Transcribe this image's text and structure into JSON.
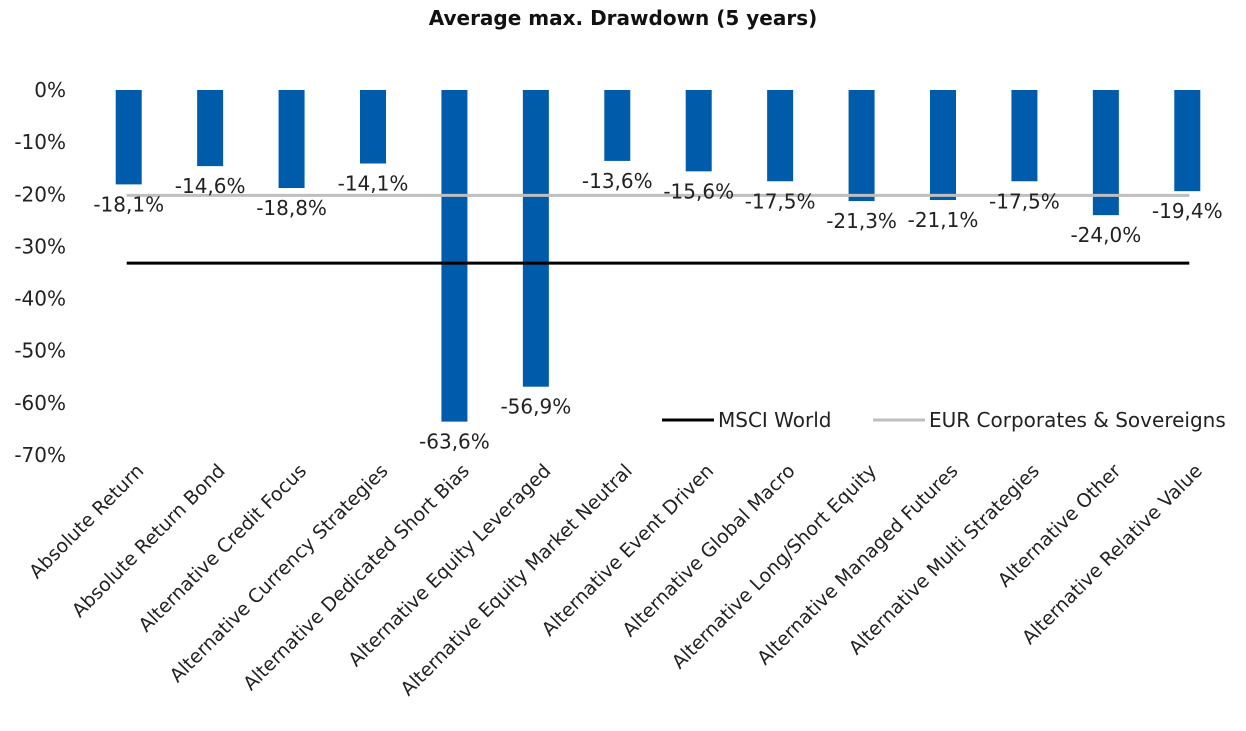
{
  "chart_data": {
    "type": "bar",
    "title": "Average max. Drawdown  (5 years)",
    "xlabel": "",
    "ylabel": "",
    "ylim": [
      -70,
      0
    ],
    "y_ticks": [
      0,
      -10,
      -20,
      -30,
      -40,
      -50,
      -60,
      -70
    ],
    "y_tick_labels": [
      "0%",
      "-10%",
      "-20%",
      "-30%",
      "-40%",
      "-50%",
      "-60%",
      "-70%"
    ],
    "categories": [
      "Absolute Return",
      "Absolute Return Bond",
      "Alternative Credit Focus",
      "Alternative Currency Strategies",
      "Alternative Dedicated Short Bias",
      "Alternative Equity Leveraged",
      "Alternative Equity Market Neutral",
      "Alternative Event Driven",
      "Alternative Global Macro",
      "Alternative Long/Short Equity",
      "Alternative Managed Futures",
      "Alternative Multi Strategies",
      "Alternative Other",
      "Alternative Relative Value"
    ],
    "values": [
      -18.1,
      -14.6,
      -18.8,
      -14.1,
      -63.6,
      -56.9,
      -13.6,
      -15.6,
      -17.5,
      -21.3,
      -21.1,
      -17.5,
      -24.0,
      -19.4
    ],
    "data_labels": [
      "-18,1%",
      "-14,6%",
      "-18,8%",
      "-14,1%",
      "-63,6%",
      "-56,9%",
      "-13,6%",
      "-15,6%",
      "-17,5%",
      "-21,3%",
      "-21,1%",
      "-17,5%",
      "-24,0%",
      "-19,4%"
    ],
    "bar_color": "#005BAA",
    "reference_lines": [
      {
        "name": "MSCI World",
        "value": -33.2,
        "color": "#000000"
      },
      {
        "name": "EUR Corporates & Sovereigns",
        "value": -20.2,
        "color": "#BFBFBF"
      }
    ],
    "legend": {
      "placement": "bottom-right",
      "entries": [
        "MSCI World",
        "EUR Corporates & Sovereigns"
      ]
    },
    "grid": false
  }
}
